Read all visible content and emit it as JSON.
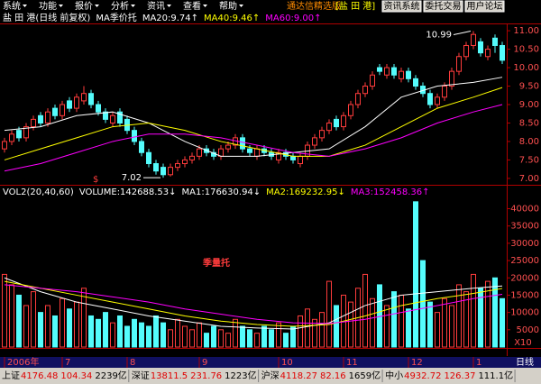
{
  "menu": {
    "items": [
      "系统",
      "功能",
      "报价",
      "分析",
      "资讯",
      "查看",
      "帮助"
    ],
    "app_name": "通达信精选版",
    "stock": "[盐 田 港]",
    "buttons": [
      "资讯系统",
      "委托交易",
      "用户论坛"
    ]
  },
  "chart_data": [
    {
      "type": "candlestick",
      "title": "盐 田 港(日线 前复权)",
      "indicator": "MA季价托",
      "up_color": "#ff3c3c",
      "down_color": "#54fcfc",
      "open": [
        7.8,
        8.0,
        8.3,
        8.1,
        8.4,
        8.7,
        8.5,
        8.9,
        8.7,
        9.1,
        8.9,
        9.1,
        9.3,
        9.0,
        8.8,
        8.5,
        8.8,
        8.6,
        8.3,
        8.0,
        7.7,
        7.4,
        7.3,
        7.1,
        7.3,
        7.4,
        7.5,
        7.6,
        7.8,
        7.7,
        7.6,
        7.8,
        7.9,
        8.1,
        7.8,
        7.6,
        7.8,
        7.7,
        7.5,
        7.7,
        7.6,
        7.4,
        7.6,
        7.9,
        8.1,
        8.3,
        8.6,
        8.4,
        8.7,
        9.0,
        9.3,
        9.5,
        10.0,
        9.8,
        10.0,
        9.7,
        9.9,
        9.7,
        9.5,
        9.3,
        9.0,
        9.2,
        9.5,
        9.9,
        10.3,
        10.6,
        10.7,
        10.3,
        10.8,
        10.6
      ],
      "high": [
        8.1,
        8.3,
        8.4,
        8.5,
        8.7,
        8.8,
        8.9,
        9.0,
        9.1,
        9.2,
        9.3,
        9.5,
        9.4,
        9.1,
        8.9,
        8.8,
        8.9,
        8.7,
        8.4,
        8.1,
        7.8,
        7.5,
        7.4,
        7.4,
        7.5,
        7.6,
        7.7,
        7.9,
        7.9,
        7.8,
        7.9,
        8.0,
        8.2,
        8.2,
        7.9,
        7.9,
        7.9,
        7.8,
        7.8,
        7.8,
        7.7,
        7.7,
        8.0,
        8.2,
        8.4,
        8.6,
        8.7,
        8.8,
        9.1,
        9.4,
        9.6,
        9.9,
        10.1,
        10.1,
        10.1,
        10.0,
        10.0,
        9.8,
        9.6,
        9.4,
        9.3,
        9.6,
        10.0,
        10.4,
        10.7,
        10.99,
        10.8,
        10.6,
        10.9,
        10.7
      ],
      "low": [
        7.7,
        7.9,
        8.0,
        8.0,
        8.3,
        8.4,
        8.4,
        8.6,
        8.6,
        8.8,
        8.8,
        9.0,
        8.9,
        8.7,
        8.5,
        8.4,
        8.4,
        8.2,
        7.9,
        7.6,
        7.3,
        7.1,
        7.02,
        7.05,
        7.2,
        7.3,
        7.4,
        7.5,
        7.6,
        7.5,
        7.5,
        7.7,
        7.8,
        7.7,
        7.6,
        7.5,
        7.6,
        7.5,
        7.4,
        7.5,
        7.4,
        7.3,
        7.5,
        7.8,
        8.0,
        8.2,
        8.3,
        8.3,
        8.6,
        8.9,
        9.2,
        9.4,
        9.8,
        9.7,
        9.7,
        9.6,
        9.6,
        9.4,
        9.2,
        8.9,
        8.9,
        9.1,
        9.4,
        9.8,
        10.2,
        10.5,
        10.3,
        10.2,
        10.4,
        10.1
      ],
      "close": [
        8.0,
        8.2,
        8.1,
        8.4,
        8.6,
        8.5,
        8.8,
        8.7,
        9.0,
        8.9,
        9.2,
        9.3,
        9.0,
        8.8,
        8.6,
        8.7,
        8.5,
        8.3,
        8.0,
        7.7,
        7.4,
        7.2,
        7.1,
        7.3,
        7.4,
        7.5,
        7.6,
        7.8,
        7.7,
        7.6,
        7.8,
        7.9,
        8.1,
        7.8,
        7.7,
        7.8,
        7.7,
        7.6,
        7.7,
        7.6,
        7.5,
        7.6,
        7.9,
        8.1,
        8.3,
        8.5,
        8.4,
        8.7,
        9.0,
        9.3,
        9.5,
        9.8,
        9.9,
        10.0,
        9.8,
        9.9,
        9.7,
        9.5,
        9.3,
        9.0,
        9.2,
        9.5,
        9.9,
        10.3,
        10.6,
        10.9,
        10.4,
        10.5,
        10.6,
        10.2
      ],
      "series": [
        {
          "name": "MA20:9.74↑",
          "color": "#ffffff",
          "x": [
            0,
            5,
            10,
            15,
            20,
            25,
            30,
            35,
            40,
            45,
            50,
            55,
            60,
            65,
            69
          ],
          "values": [
            8.3,
            8.4,
            8.7,
            8.8,
            8.5,
            8.0,
            7.6,
            7.6,
            7.7,
            7.8,
            8.4,
            9.2,
            9.5,
            9.6,
            9.74
          ]
        },
        {
          "name": "MA40:9.46↑",
          "color": "#ffff00",
          "x": [
            0,
            5,
            10,
            15,
            20,
            25,
            30,
            35,
            40,
            45,
            50,
            55,
            60,
            65,
            69
          ],
          "values": [
            7.5,
            7.8,
            8.1,
            8.4,
            8.5,
            8.3,
            8.0,
            7.8,
            7.6,
            7.6,
            7.9,
            8.4,
            8.9,
            9.2,
            9.46
          ]
        },
        {
          "name": "MA60:9.00↑",
          "color": "#ff00ff",
          "x": [
            0,
            5,
            10,
            15,
            20,
            25,
            30,
            35,
            40,
            45,
            50,
            55,
            60,
            65,
            69
          ],
          "values": [
            7.2,
            7.4,
            7.7,
            8.0,
            8.2,
            8.2,
            8.1,
            7.9,
            7.7,
            7.6,
            7.8,
            8.1,
            8.5,
            8.8,
            9.0
          ]
        }
      ],
      "annotations": [
        {
          "value": 10.99,
          "label": "10.99"
        },
        {
          "value": 7.02,
          "label": "7.02"
        }
      ],
      "marker_label": "$",
      "ylim": [
        6.9,
        11.1
      ],
      "yticks": [
        {
          "value": 7,
          "label": "7.00"
        },
        {
          "value": 7.5,
          "label": "7.50"
        },
        {
          "value": 8,
          "label": "8.00"
        },
        {
          "value": 8.5,
          "label": "8.50"
        },
        {
          "value": 9,
          "label": "9.00"
        },
        {
          "value": 9.5,
          "label": "9.50"
        },
        {
          "value": 10,
          "label": "10.00"
        },
        {
          "value": 10.5,
          "label": "10.50"
        },
        {
          "value": 11,
          "label": "11.00"
        }
      ]
    },
    {
      "type": "bar",
      "title": "VOL2(20,40,60)",
      "label": "季量托",
      "series": [
        {
          "name": "VOLUME:142688.53↓",
          "color": "#ffffff",
          "values": [
            21000,
            18000,
            15000,
            12000,
            16000,
            10000,
            12000,
            9000,
            14000,
            11000,
            13000,
            17000,
            9000,
            8000,
            10000,
            7000,
            9000,
            6000,
            8000,
            7000,
            6000,
            9000,
            7000,
            5000,
            8000,
            6000,
            5000,
            7000,
            4000,
            6000,
            5000,
            4000,
            8000,
            6000,
            5000,
            4000,
            6000,
            5000,
            7000,
            4000,
            6000,
            9000,
            11000,
            8000,
            10000,
            19000,
            12000,
            15000,
            13000,
            17000,
            21000,
            14000,
            18000,
            12000,
            16000,
            15000,
            11000,
            42000,
            25000,
            13000,
            10000,
            14000,
            12000,
            18000,
            16000,
            21000,
            17000,
            19000,
            20000,
            14000
          ]
        },
        {
          "name": "MA1:176630.94↓",
          "color": "#ffffff",
          "x": [
            0,
            5,
            10,
            15,
            20,
            25,
            30,
            35,
            40,
            45,
            50,
            55,
            60,
            65,
            69
          ],
          "values": [
            20000,
            16000,
            13000,
            11000,
            9000,
            7500,
            6000,
            5500,
            5200,
            7000,
            12000,
            15000,
            16000,
            17000,
            17663
          ]
        },
        {
          "name": "MA2:169232.95↓",
          "color": "#ffff00",
          "x": [
            0,
            5,
            10,
            15,
            20,
            25,
            30,
            35,
            40,
            45,
            50,
            55,
            60,
            65,
            69
          ],
          "values": [
            19000,
            17000,
            15000,
            13000,
            11000,
            9000,
            7500,
            6500,
            6000,
            6500,
            9000,
            12000,
            14000,
            15500,
            16923
          ]
        },
        {
          "name": "MA3:152458.36↑",
          "color": "#ff00ff",
          "x": [
            0,
            5,
            10,
            15,
            20,
            25,
            30,
            35,
            40,
            45,
            50,
            55,
            60,
            65,
            69
          ],
          "values": [
            18000,
            17000,
            16000,
            14500,
            13000,
            11000,
            9500,
            8000,
            7000,
            6800,
            8000,
            10000,
            12000,
            14000,
            15246
          ]
        }
      ],
      "ylim": [
        0,
        43000
      ],
      "yticks": [
        5000,
        10000,
        15000,
        20000,
        25000,
        30000,
        35000,
        40000
      ],
      "unit_label": "X10",
      "period_label": "日线",
      "xticks": [
        {
          "value": 0,
          "label": "2006年"
        },
        {
          "value": 8,
          "label": "7"
        },
        {
          "value": 17,
          "label": "8"
        },
        {
          "value": 27,
          "label": "9"
        },
        {
          "value": 38,
          "label": "10"
        },
        {
          "value": 47,
          "label": "11"
        },
        {
          "value": 56,
          "label": "12"
        },
        {
          "value": 65,
          "label": "1"
        }
      ]
    }
  ],
  "status_bar": [
    {
      "name": "上证",
      "value": 4176.48,
      "change": 104.34,
      "amount": "2239亿"
    },
    {
      "name": "深证",
      "value": 13811.5,
      "change": 231.76,
      "amount": "1223亿"
    },
    {
      "name": "沪深",
      "value": 4118.27,
      "change": 82.16,
      "amount": "1659亿"
    },
    {
      "name": "中小",
      "value": 4932.72,
      "change": 126.37,
      "amount": "111.1亿"
    }
  ]
}
